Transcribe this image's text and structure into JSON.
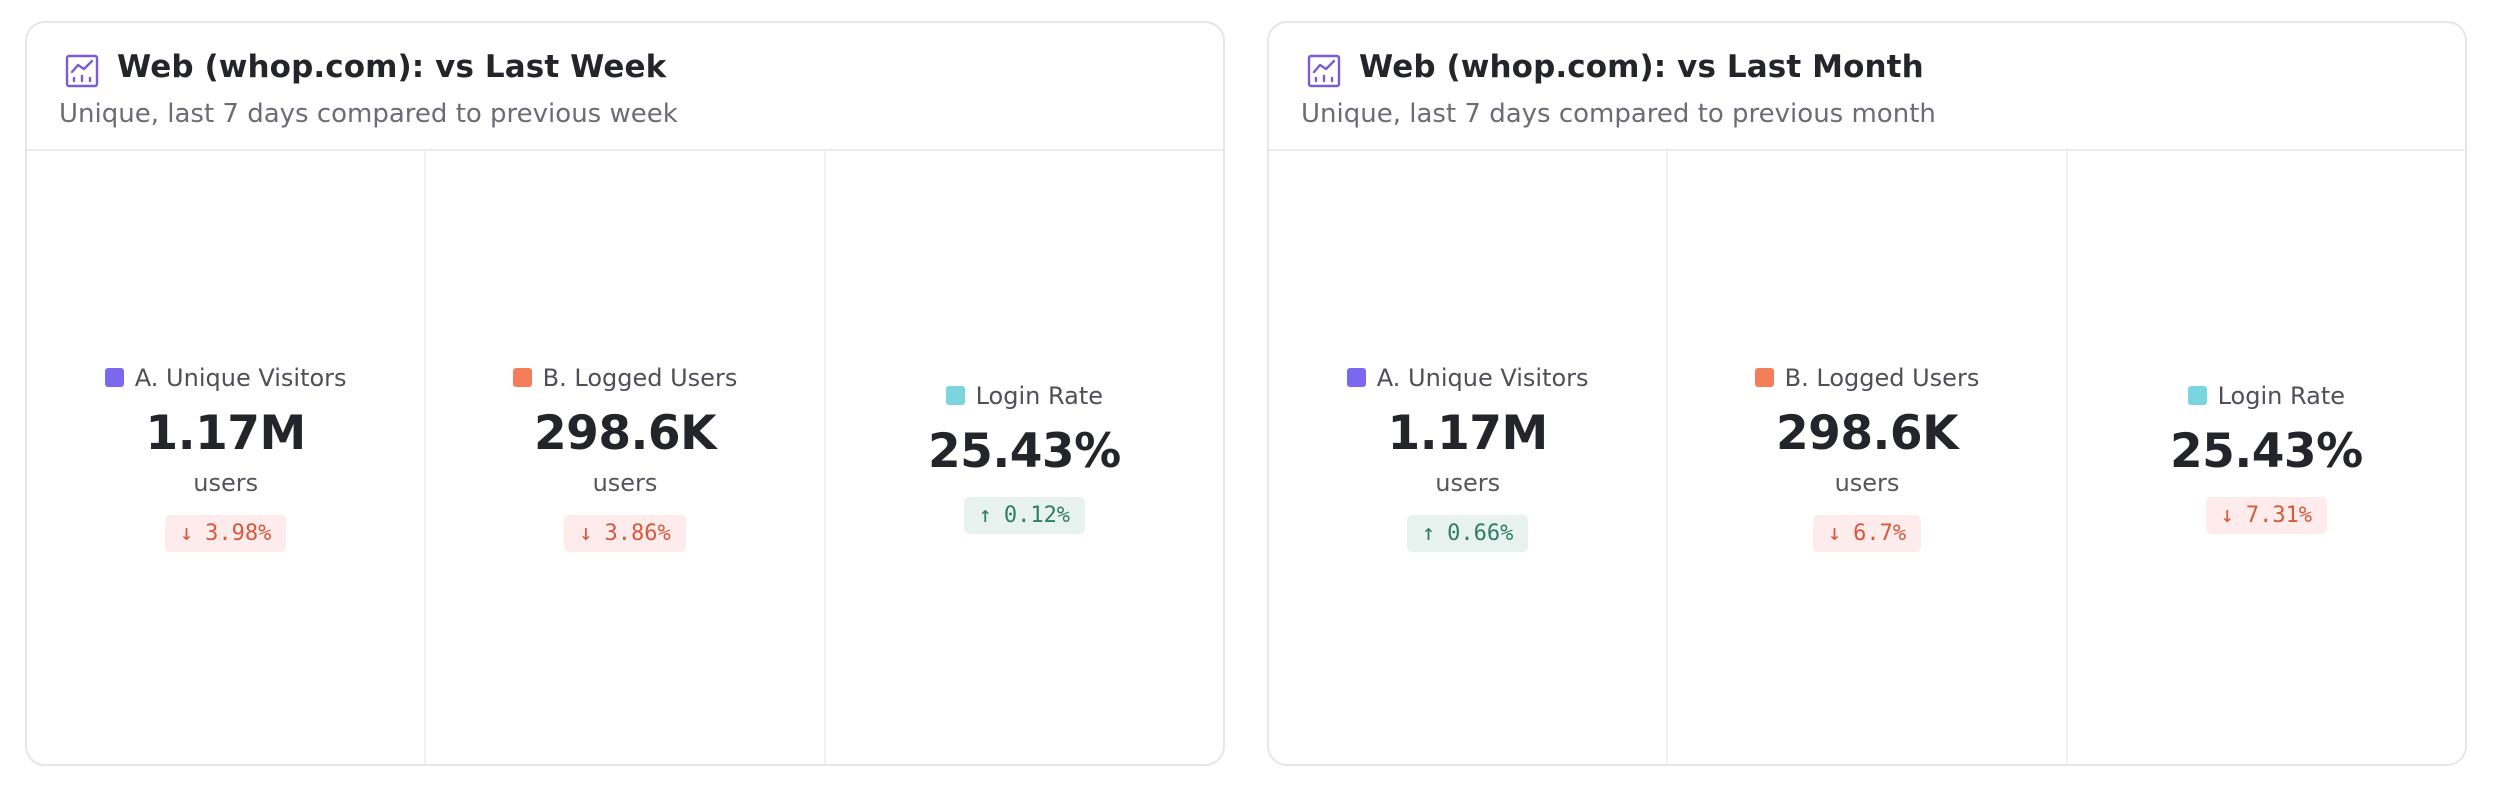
{
  "colors": {
    "visitors": "#7b68ee",
    "logged": "#f47e5c",
    "rate": "#7ad5df",
    "down_bg": "#fdeceb",
    "down_fg": "#d5593c",
    "up_bg": "#e8f2ef",
    "up_fg": "#2f7d66",
    "icon": "#7b5cd6"
  },
  "cards": [
    {
      "icon": "line-chart-icon",
      "title": "Web (whop.com): vs Last Week",
      "subtitle": "Unique, last 7 days compared to previous week",
      "metrics": [
        {
          "label": "A. Unique Visitors",
          "value": "1.17M",
          "unit": "users",
          "change": "3.98%",
          "direction": "down",
          "arrow": "↓"
        },
        {
          "label": "B. Logged Users",
          "value": "298.6K",
          "unit": "users",
          "change": "3.86%",
          "direction": "down",
          "arrow": "↓"
        },
        {
          "label": "Login Rate",
          "value": "25.43%",
          "unit": "",
          "change": "0.12%",
          "direction": "up",
          "arrow": "↑"
        }
      ]
    },
    {
      "icon": "line-chart-icon",
      "title": "Web (whop.com): vs Last Month",
      "subtitle": "Unique, last 7 days compared to previous month",
      "metrics": [
        {
          "label": "A. Unique Visitors",
          "value": "1.17M",
          "unit": "users",
          "change": "0.66%",
          "direction": "up",
          "arrow": "↑"
        },
        {
          "label": "B. Logged Users",
          "value": "298.6K",
          "unit": "users",
          "change": "6.7%",
          "direction": "down",
          "arrow": "↓"
        },
        {
          "label": "Login Rate",
          "value": "25.43%",
          "unit": "",
          "change": "7.31%",
          "direction": "down",
          "arrow": "↓"
        }
      ]
    }
  ]
}
